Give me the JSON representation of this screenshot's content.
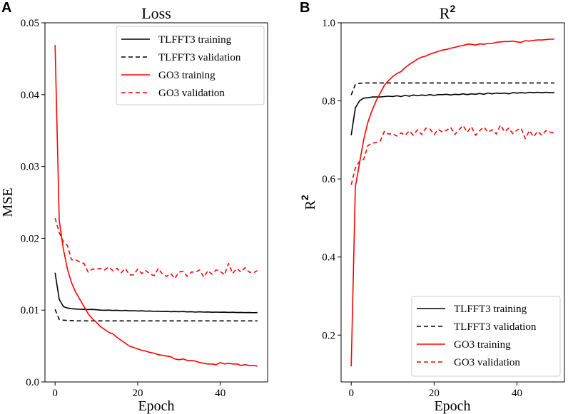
{
  "chart_data": [
    {
      "panel": "A",
      "type": "line",
      "title": "Loss",
      "xlabel": "Epoch",
      "ylabel": "MSE",
      "xlim": [
        -2.45,
        51.45
      ],
      "ylim": [
        0.0,
        0.05
      ],
      "xticks": [
        0,
        20,
        40
      ],
      "yticks": [
        0.0,
        0.01,
        0.02,
        0.03,
        0.04,
        0.05
      ],
      "ytick_labels": [
        "0.0",
        "0.01",
        "0.02",
        "0.03",
        "0.04",
        "0.05"
      ],
      "legend_position": "top-right",
      "series": [
        {
          "name": "TLFFT3 training",
          "color": "#000000",
          "dash": "solid",
          "x": [
            0,
            1,
            2,
            3,
            4,
            5,
            6,
            7,
            8,
            9,
            10,
            11,
            12,
            13,
            14,
            15,
            16,
            17,
            18,
            19,
            20,
            21,
            22,
            23,
            24,
            25,
            26,
            27,
            28,
            29,
            30,
            31,
            32,
            33,
            34,
            35,
            36,
            37,
            38,
            39,
            40,
            41,
            42,
            43,
            44,
            45,
            46,
            47,
            48,
            49
          ],
          "y": [
            0.0152,
            0.0115,
            0.0105,
            0.0103,
            0.0102,
            0.01015,
            0.01012,
            0.0101,
            0.01008,
            0.0101,
            0.01005,
            0.01,
            0.00998,
            0.01,
            0.00995,
            0.00998,
            0.00992,
            0.00996,
            0.0099,
            0.00992,
            0.00988,
            0.0099,
            0.00985,
            0.00988,
            0.00982,
            0.00985,
            0.0098,
            0.00983,
            0.00978,
            0.0098,
            0.00978,
            0.0098,
            0.00975,
            0.00978,
            0.00972,
            0.00976,
            0.00972,
            0.00974,
            0.0097,
            0.00972,
            0.0097,
            0.00971,
            0.00968,
            0.0097,
            0.00966,
            0.00968,
            0.00965,
            0.00966,
            0.00964,
            0.00965
          ]
        },
        {
          "name": "TLFFT3 validation",
          "color": "#000000",
          "dash": "dashed",
          "x": [
            0,
            1,
            2,
            3,
            4,
            5,
            6,
            7,
            8,
            9,
            10,
            11,
            12,
            13,
            14,
            15,
            16,
            17,
            18,
            19,
            20,
            21,
            22,
            23,
            24,
            25,
            26,
            27,
            28,
            29,
            30,
            31,
            32,
            33,
            34,
            35,
            36,
            37,
            38,
            39,
            40,
            41,
            42,
            43,
            44,
            45,
            46,
            47,
            48,
            49
          ],
          "y": [
            0.0101,
            0.0087,
            0.0086,
            0.00855,
            0.00855,
            0.0085,
            0.0085,
            0.0085,
            0.0085,
            0.0085,
            0.0085,
            0.0085,
            0.0085,
            0.0085,
            0.0085,
            0.0085,
            0.0085,
            0.0085,
            0.0085,
            0.0085,
            0.0085,
            0.0085,
            0.0085,
            0.0085,
            0.0085,
            0.0085,
            0.0085,
            0.0085,
            0.0085,
            0.0085,
            0.0085,
            0.0085,
            0.0085,
            0.0085,
            0.0085,
            0.0085,
            0.0085,
            0.0085,
            0.0085,
            0.0085,
            0.0085,
            0.0085,
            0.0085,
            0.0085,
            0.0085,
            0.0085,
            0.0085,
            0.0085,
            0.0085,
            0.0085
          ]
        },
        {
          "name": "GO3 training",
          "color": "#ff0000",
          "dash": "solid",
          "x": [
            0,
            1,
            2,
            3,
            4,
            5,
            6,
            7,
            8,
            9,
            10,
            11,
            12,
            13,
            14,
            15,
            16,
            17,
            18,
            19,
            20,
            21,
            22,
            23,
            24,
            25,
            26,
            27,
            28,
            29,
            30,
            31,
            32,
            33,
            34,
            35,
            36,
            37,
            38,
            39,
            40,
            41,
            42,
            43,
            44,
            45,
            46,
            47,
            48,
            49
          ],
          "y": [
            0.0469,
            0.0225,
            0.0185,
            0.0157,
            0.0138,
            0.0125,
            0.0115,
            0.0105,
            0.0095,
            0.0088,
            0.0083,
            0.0077,
            0.0073,
            0.0069,
            0.0067,
            0.0062,
            0.0058,
            0.0054,
            0.005,
            0.0048,
            0.0046,
            0.0044,
            0.0043,
            0.0041,
            0.004,
            0.0038,
            0.0037,
            0.0036,
            0.0035,
            0.0032,
            0.0031,
            0.0032,
            0.003,
            0.003,
            0.0029,
            0.0027,
            0.0026,
            0.0025,
            0.0025,
            0.0024,
            0.0027,
            0.0025,
            0.0026,
            0.0025,
            0.0025,
            0.0023,
            0.0024,
            0.0023,
            0.0023,
            0.0022
          ]
        },
        {
          "name": "GO3 validation",
          "color": "#ff0000",
          "dash": "dashed",
          "x": [
            0,
            1,
            2,
            3,
            4,
            5,
            6,
            7,
            8,
            9,
            10,
            11,
            12,
            13,
            14,
            15,
            16,
            17,
            18,
            19,
            20,
            21,
            22,
            23,
            24,
            25,
            26,
            27,
            28,
            29,
            30,
            31,
            32,
            33,
            34,
            35,
            36,
            37,
            38,
            39,
            40,
            41,
            42,
            43,
            44,
            45,
            46,
            47,
            48,
            49
          ],
          "y": [
            0.0228,
            0.0208,
            0.0195,
            0.019,
            0.017,
            0.017,
            0.0167,
            0.0165,
            0.0153,
            0.0157,
            0.0157,
            0.0158,
            0.0156,
            0.016,
            0.0155,
            0.0158,
            0.0152,
            0.0158,
            0.0149,
            0.0149,
            0.0157,
            0.0151,
            0.0155,
            0.015,
            0.0148,
            0.0158,
            0.015,
            0.0147,
            0.0151,
            0.0144,
            0.0153,
            0.0154,
            0.0147,
            0.0153,
            0.0153,
            0.0156,
            0.0146,
            0.0155,
            0.015,
            0.0156,
            0.0154,
            0.0149,
            0.0165,
            0.0151,
            0.0158,
            0.0153,
            0.0159,
            0.0153,
            0.0152,
            0.0155
          ]
        }
      ]
    },
    {
      "panel": "B",
      "type": "line",
      "title": "R",
      "title_superscript": "2",
      "xlabel": "Epoch",
      "ylabel": "R",
      "ylabel_superscript": "2",
      "xlim": [
        -2.45,
        51.45
      ],
      "ylim": [
        0.08,
        1.0
      ],
      "xticks": [
        0,
        20,
        40
      ],
      "yticks": [
        0.2,
        0.4,
        0.6,
        0.8,
        1.0
      ],
      "ytick_labels": [
        "0.2",
        "0.4",
        "0.6",
        "0.8",
        "1.0"
      ],
      "legend_position": "bottom-right",
      "series": [
        {
          "name": "TLFFT3 training",
          "color": "#000000",
          "dash": "solid",
          "x": [
            0,
            1,
            2,
            3,
            4,
            5,
            6,
            7,
            8,
            9,
            10,
            11,
            12,
            13,
            14,
            15,
            16,
            17,
            18,
            19,
            20,
            21,
            22,
            23,
            24,
            25,
            26,
            27,
            28,
            29,
            30,
            31,
            32,
            33,
            34,
            35,
            36,
            37,
            38,
            39,
            40,
            41,
            42,
            43,
            44,
            45,
            46,
            47,
            48,
            49
          ],
          "y": [
            0.712,
            0.782,
            0.8,
            0.807,
            0.808,
            0.81,
            0.81,
            0.81,
            0.811,
            0.812,
            0.811,
            0.813,
            0.811,
            0.814,
            0.812,
            0.815,
            0.813,
            0.815,
            0.814,
            0.816,
            0.814,
            0.816,
            0.816,
            0.817,
            0.815,
            0.817,
            0.816,
            0.818,
            0.816,
            0.818,
            0.817,
            0.819,
            0.817,
            0.82,
            0.818,
            0.82,
            0.819,
            0.82,
            0.818,
            0.821,
            0.82,
            0.821,
            0.82,
            0.822,
            0.821,
            0.822,
            0.821,
            0.822,
            0.821,
            0.821
          ]
        },
        {
          "name": "TLFFT3 validation",
          "color": "#000000",
          "dash": "dashed",
          "x": [
            0,
            1,
            2,
            3,
            4,
            5,
            6,
            7,
            8,
            9,
            10,
            11,
            12,
            13,
            14,
            15,
            16,
            17,
            18,
            19,
            20,
            21,
            22,
            23,
            24,
            25,
            26,
            27,
            28,
            29,
            30,
            31,
            32,
            33,
            34,
            35,
            36,
            37,
            38,
            39,
            40,
            41,
            42,
            43,
            44,
            45,
            46,
            47,
            48,
            49
          ],
          "y": [
            0.815,
            0.842,
            0.845,
            0.846,
            0.846,
            0.846,
            0.846,
            0.846,
            0.846,
            0.846,
            0.846,
            0.846,
            0.846,
            0.846,
            0.846,
            0.846,
            0.846,
            0.846,
            0.846,
            0.846,
            0.846,
            0.846,
            0.846,
            0.846,
            0.846,
            0.846,
            0.846,
            0.846,
            0.846,
            0.846,
            0.846,
            0.846,
            0.846,
            0.846,
            0.846,
            0.846,
            0.846,
            0.846,
            0.846,
            0.846,
            0.846,
            0.846,
            0.846,
            0.846,
            0.846,
            0.846,
            0.846,
            0.846,
            0.846,
            0.846
          ]
        },
        {
          "name": "GO3 training",
          "color": "#ff0000",
          "dash": "solid",
          "x": [
            0,
            1,
            2,
            3,
            4,
            5,
            6,
            7,
            8,
            9,
            10,
            11,
            12,
            13,
            14,
            15,
            16,
            17,
            18,
            19,
            20,
            21,
            22,
            23,
            24,
            25,
            26,
            27,
            28,
            29,
            30,
            31,
            32,
            33,
            34,
            35,
            36,
            37,
            38,
            39,
            40,
            41,
            42,
            43,
            44,
            45,
            46,
            47,
            48,
            49
          ],
          "y": [
            0.12,
            0.58,
            0.64,
            0.7,
            0.745,
            0.775,
            0.8,
            0.82,
            0.84,
            0.852,
            0.862,
            0.87,
            0.875,
            0.885,
            0.893,
            0.9,
            0.907,
            0.912,
            0.915,
            0.92,
            0.923,
            0.927,
            0.93,
            0.932,
            0.935,
            0.937,
            0.94,
            0.942,
            0.945,
            0.945,
            0.943,
            0.946,
            0.945,
            0.947,
            0.947,
            0.95,
            0.951,
            0.952,
            0.952,
            0.953,
            0.951,
            0.95,
            0.954,
            0.953,
            0.955,
            0.956,
            0.956,
            0.957,
            0.958,
            0.958
          ]
        },
        {
          "name": "GO3 validation",
          "color": "#ff0000",
          "dash": "dashed",
          "x": [
            0,
            1,
            2,
            3,
            4,
            5,
            6,
            7,
            8,
            9,
            10,
            11,
            12,
            13,
            14,
            15,
            16,
            17,
            18,
            19,
            20,
            21,
            22,
            23,
            24,
            25,
            26,
            27,
            28,
            29,
            30,
            31,
            32,
            33,
            34,
            35,
            36,
            37,
            38,
            39,
            40,
            41,
            42,
            43,
            44,
            45,
            46,
            47,
            48,
            49
          ],
          "y": [
            0.585,
            0.628,
            0.645,
            0.65,
            0.685,
            0.692,
            0.693,
            0.697,
            0.722,
            0.715,
            0.716,
            0.71,
            0.718,
            0.712,
            0.723,
            0.712,
            0.726,
            0.714,
            0.73,
            0.728,
            0.714,
            0.727,
            0.72,
            0.725,
            0.732,
            0.714,
            0.726,
            0.737,
            0.72,
            0.734,
            0.712,
            0.724,
            0.733,
            0.72,
            0.726,
            0.715,
            0.738,
            0.721,
            0.73,
            0.716,
            0.725,
            0.73,
            0.703,
            0.724,
            0.708,
            0.722,
            0.712,
            0.724,
            0.72,
            0.718
          ]
        }
      ]
    }
  ],
  "panels": [
    {
      "letter": "A",
      "title": "Loss",
      "title_sup": "",
      "xlabel": "Epoch",
      "ylabel": "MSE",
      "ylabel_sup": ""
    },
    {
      "letter": "B",
      "title": "R",
      "title_sup": "2",
      "xlabel": "Epoch",
      "ylabel": "R",
      "ylabel_sup": "2"
    }
  ]
}
